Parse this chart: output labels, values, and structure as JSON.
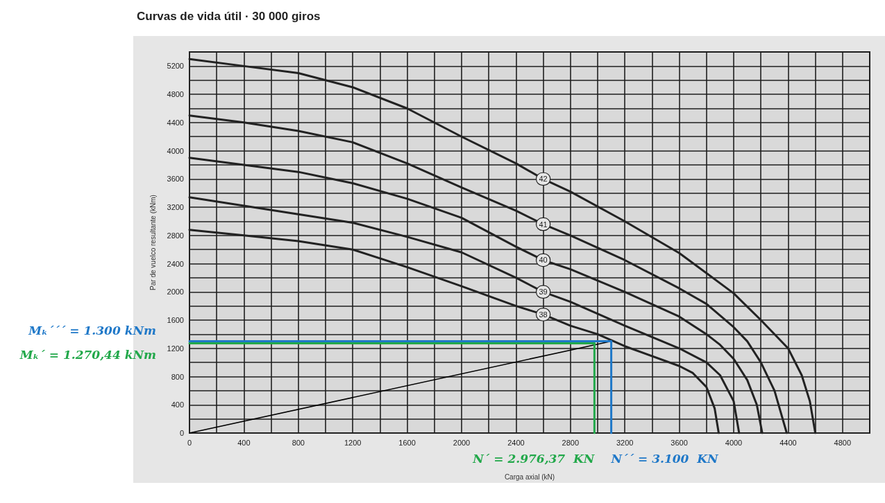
{
  "chart_data": {
    "type": "line",
    "title": "Curvas de vida útil · 30 000 giros",
    "xlabel": "Carga axial (kN)",
    "ylabel": "Par de vuelco resultante (kNm)",
    "xlim": [
      0,
      5000
    ],
    "ylim": [
      0,
      5400
    ],
    "xticks": [
      0,
      {
        "value": 200,
        "label": null
      },
      400,
      {
        "value": 600,
        "label": null
      },
      800,
      {
        "value": 1000,
        "label": null
      },
      1200,
      {
        "value": 1400,
        "label": null
      },
      1600,
      {
        "value": 1800,
        "label": null
      },
      2000,
      {
        "value": 2200,
        "label": null
      },
      2400,
      {
        "value": 2600,
        "label": null
      },
      2800,
      {
        "value": 3000,
        "label": null
      },
      3200,
      {
        "value": 3400,
        "label": null
      },
      3600,
      {
        "value": 3800,
        "label": null
      },
      4000,
      {
        "value": 4200,
        "label": null
      },
      4400,
      {
        "value": 4600,
        "label": null
      },
      4800,
      {
        "value": 5000,
        "label": null
      }
    ],
    "yticks": [
      0,
      {
        "value": 200,
        "label": null
      },
      400,
      {
        "value": 600,
        "label": null
      },
      800,
      {
        "value": 1000,
        "label": null
      },
      1200,
      {
        "value": 1400,
        "label": null
      },
      1600,
      {
        "value": 1800,
        "label": null
      },
      2000,
      {
        "value": 2200,
        "label": null
      },
      2400,
      {
        "value": 2600,
        "label": null
      },
      2800,
      {
        "value": 3000,
        "label": null
      },
      3200,
      {
        "value": 3400,
        "label": null
      },
      3600,
      {
        "value": 3800,
        "label": null
      },
      4000,
      {
        "value": 4200,
        "label": null
      },
      4400,
      {
        "value": 4600,
        "label": null
      },
      4800,
      {
        "value": 5000,
        "label": null
      },
      5200,
      {
        "value": 5400,
        "label": null
      }
    ],
    "grid": true,
    "marker": "none",
    "series": [
      {
        "name": "42",
        "color": "#222222",
        "x": [
          0,
          400,
          800,
          1200,
          1600,
          2000,
          2400,
          2600,
          2800,
          3200,
          3600,
          4000,
          4200,
          4400,
          4500,
          4560,
          4600
        ],
        "values": [
          5300,
          5200,
          5100,
          4900,
          4600,
          4200,
          3820,
          3600,
          3420,
          3000,
          2550,
          1980,
          1600,
          1200,
          820,
          450,
          0
        ]
      },
      {
        "name": "41",
        "color": "#222222",
        "x": [
          0,
          400,
          800,
          1200,
          1600,
          2000,
          2400,
          2600,
          2800,
          3200,
          3600,
          3800,
          4000,
          4100,
          4200,
          4300,
          4390
        ],
        "values": [
          4500,
          4400,
          4280,
          4120,
          3820,
          3480,
          3150,
          2960,
          2800,
          2450,
          2050,
          1830,
          1500,
          1300,
          1000,
          600,
          0
        ]
      },
      {
        "name": "40",
        "color": "#222222",
        "x": [
          0,
          400,
          800,
          1200,
          1600,
          2000,
          2400,
          2600,
          2800,
          3200,
          3600,
          3800,
          3900,
          4000,
          4100,
          4170,
          4210
        ],
        "values": [
          3900,
          3800,
          3700,
          3540,
          3320,
          3050,
          2640,
          2450,
          2320,
          2000,
          1650,
          1400,
          1250,
          1050,
          750,
          400,
          0
        ]
      },
      {
        "name": "39",
        "color": "#222222",
        "x": [
          0,
          400,
          800,
          1200,
          1600,
          2000,
          2400,
          2600,
          2800,
          3200,
          3600,
          3800,
          3900,
          4000,
          4040
        ],
        "values": [
          3340,
          3220,
          3100,
          2980,
          2780,
          2560,
          2200,
          2000,
          1860,
          1520,
          1200,
          1000,
          820,
          450,
          0
        ]
      },
      {
        "name": "38",
        "color": "#222222",
        "x": [
          0,
          400,
          800,
          1200,
          1600,
          2000,
          2400,
          2600,
          2800,
          3000,
          3200,
          3600,
          3700,
          3800,
          3860,
          3890
        ],
        "values": [
          2880,
          2800,
          2720,
          2600,
          2350,
          2080,
          1800,
          1680,
          1520,
          1400,
          1230,
          950,
          850,
          650,
          350,
          0
        ]
      },
      {
        "color": "#000000",
        "x": [
          0,
          3100
        ],
        "values": [
          0,
          1300
        ]
      },
      {
        "name": "Mₖ´´´ = 1.300 kNm",
        "color": "#1f78c8",
        "x": [
          3100,
          0
        ],
        "values": [
          1300,
          1300
        ]
      },
      {
        "name": "N´´ = 3.100  KN",
        "color": "#1f78c8",
        "x": [
          3100,
          3100
        ],
        "values": [
          1300,
          0
        ]
      },
      {
        "name": "Mₖ´ = 1.270,44 kNm",
        "color": "#22a84a",
        "x": [
          2976.37,
          0
        ],
        "values": [
          1270.44,
          1270.44
        ]
      },
      {
        "name": "N´ = 2.976,37  KN",
        "color": "#22a84a",
        "x": [
          2976.37,
          2976.37
        ],
        "values": [
          1270.44,
          0
        ]
      }
    ]
  }
}
